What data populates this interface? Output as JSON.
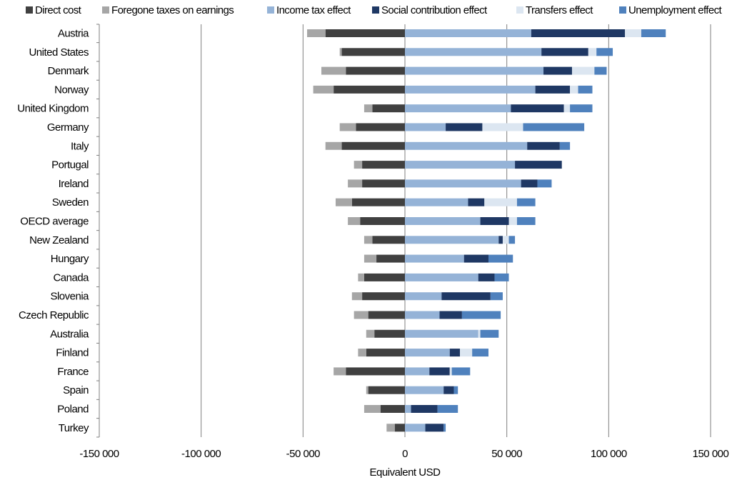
{
  "chart_data": {
    "type": "bar",
    "orientation": "horizontal",
    "stacked": true,
    "xlabel": "Equivalent USD",
    "ylabel": "",
    "xlim": [
      -150000,
      150000
    ],
    "xticks": [
      -150000,
      -100000,
      -50000,
      0,
      50000,
      100000,
      150000
    ],
    "xtick_labels": [
      "-150 000",
      "-100 000",
      "-50 000",
      "0",
      "50 000",
      "100 000",
      "150 000"
    ],
    "grid": "vertical",
    "legend_position": "top",
    "categories": [
      "Austria",
      "United States",
      "Denmark",
      "Norway",
      "United Kingdom",
      "Germany",
      "Italy",
      "Portugal",
      "Ireland",
      "Sweden",
      "OECD average",
      "New Zealand",
      "Hungary",
      "Canada",
      "Slovenia",
      "Czech Republic",
      "Australia",
      "Finland",
      "France",
      "Spain",
      "Poland",
      "Turkey"
    ],
    "series": [
      {
        "name": "Direct cost",
        "color": "#404040",
        "values": [
          -39000,
          -31000,
          -29000,
          -35000,
          -16000,
          -24000,
          -31000,
          -21000,
          -21000,
          -26000,
          -22000,
          -16000,
          -14000,
          -20000,
          -21000,
          -18000,
          -15000,
          -19000,
          -29000,
          -18000,
          -12000,
          -5000
        ]
      },
      {
        "name": "Foregone taxes on earnings",
        "color": "#a6a6a6",
        "values": [
          -9000,
          -1000,
          -12000,
          -10000,
          -4000,
          -8000,
          -8000,
          -4000,
          -7000,
          -8000,
          -6000,
          -4000,
          -6000,
          -3000,
          -5000,
          -7000,
          -4000,
          -4000,
          -6000,
          -1000,
          -8000,
          -4000
        ]
      },
      {
        "name": "Income tax effect",
        "color": "#95b3d7",
        "values": [
          62000,
          67000,
          68000,
          64000,
          52000,
          20000,
          60000,
          54000,
          57000,
          31000,
          37000,
          46000,
          29000,
          36000,
          18000,
          17000,
          36000,
          22000,
          12000,
          19000,
          3000,
          10000
        ]
      },
      {
        "name": "Social contribution effect",
        "color": "#1f3864",
        "values": [
          46000,
          23000,
          14000,
          17000,
          26000,
          18000,
          16000,
          23000,
          8000,
          8000,
          14000,
          2000,
          12000,
          8000,
          24000,
          11000,
          0,
          5000,
          10000,
          5000,
          13000,
          9000
        ]
      },
      {
        "name": "Transfers effect",
        "color": "#dce6f1",
        "values": [
          8000,
          4000,
          11000,
          4000,
          3000,
          20000,
          0,
          0,
          0,
          16000,
          4000,
          3000,
          0,
          0,
          0,
          0,
          1000,
          6000,
          1000,
          0,
          0,
          0
        ]
      },
      {
        "name": "Unemployment effect",
        "color": "#4f81bd",
        "values": [
          12000,
          8000,
          6000,
          7000,
          11000,
          30000,
          5000,
          0,
          7000,
          9000,
          9000,
          3000,
          12000,
          7000,
          6000,
          19000,
          9000,
          8000,
          9000,
          2000,
          10000,
          1000
        ]
      }
    ]
  }
}
